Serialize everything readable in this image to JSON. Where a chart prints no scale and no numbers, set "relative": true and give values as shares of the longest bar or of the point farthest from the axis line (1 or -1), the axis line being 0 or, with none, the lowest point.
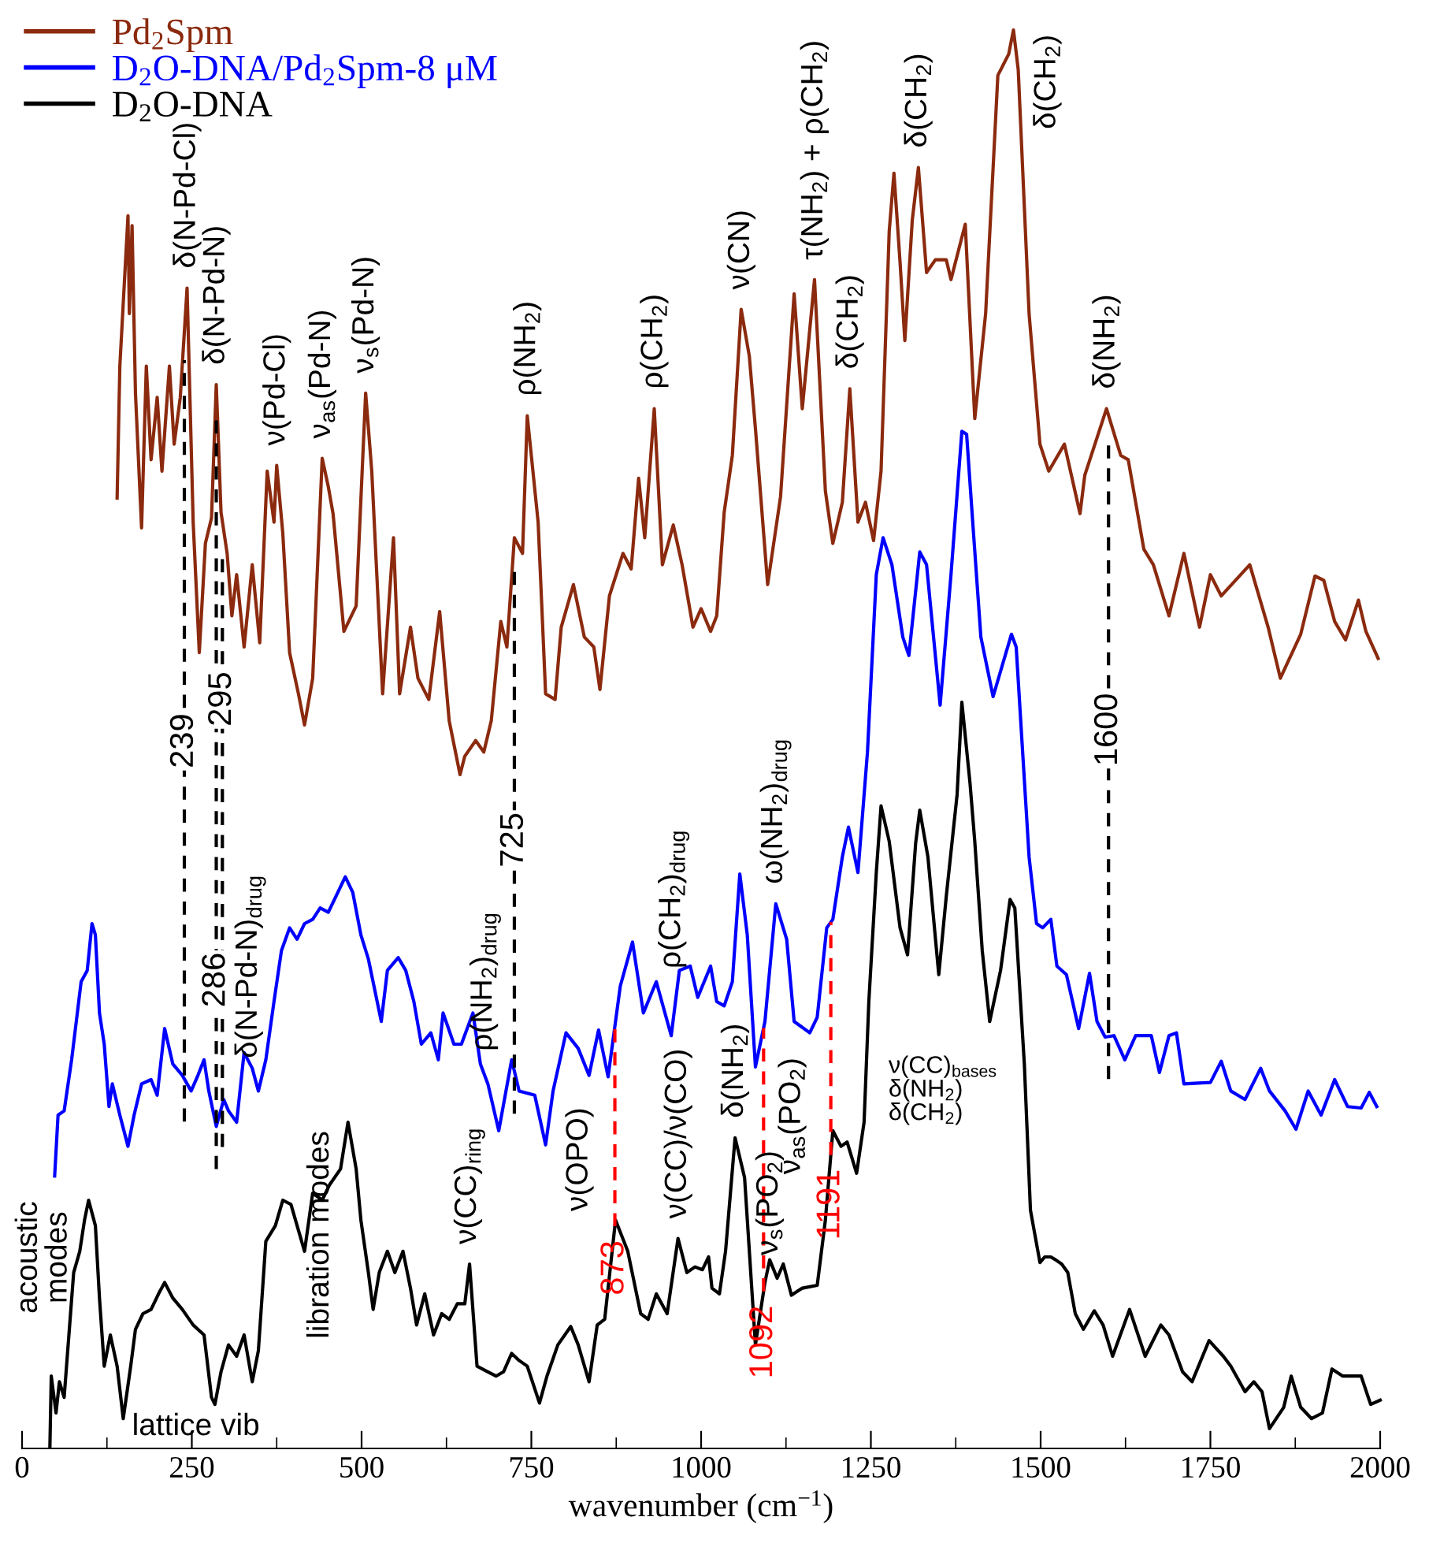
{
  "chart_data": {
    "type": "line",
    "relative": true,
    "xlabel": "wavenumber (cm$^{−1}$)",
    "xlim": [
      0,
      2000
    ],
    "xticks": [
      0,
      250,
      500,
      750,
      1000,
      1250,
      1500,
      1750,
      2000
    ],
    "tick_labels": "x",
    "legend": "top left",
    "series": [
      {
        "name": "Pd$_{2}$Spm",
        "color": "#8b2a0e",
        "x": [
          140,
          144,
          156,
          158,
          162,
          167,
          176,
          183,
          190,
          199,
          206,
          217,
          224,
          233,
          243,
          252,
          261,
          270,
          279,
          286,
          293,
          302,
          309,
          316,
          327,
          339,
          350,
          361,
          371,
          375,
          384,
          394,
          407,
          416,
          428,
          442,
          451,
          458,
          474,
          492,
          506,
          515,
          531,
          547,
          556,
          572,
          583,
          599,
          615,
          629,
          645,
          652,
          668,
          680,
          691,
          705,
          714,
          725,
          737,
          744,
          760,
          771,
          785,
          794,
          812,
          828,
          842,
          851,
          865,
          885,
          897,
          908,
          917,
          931,
          943,
          959,
          972,
          988,
          1000,
          1014,
          1023,
          1034,
          1046,
          1059,
          1071,
          1080,
          1098,
          1117,
          1137,
          1149,
          1167,
          1183,
          1194,
          1208,
          1219,
          1231,
          1242,
          1254,
          1265,
          1277,
          1284,
          1293,
          1300,
          1311,
          1320,
          1332,
          1345,
          1361,
          1368,
          1389,
          1403,
          1419,
          1437,
          1453,
          1460,
          1467,
          1483,
          1499,
          1512,
          1535,
          1558,
          1565,
          1597,
          1618,
          1629,
          1652,
          1666,
          1689,
          1711,
          1734,
          1750,
          1766,
          1808,
          1835,
          1853,
          1883,
          1904,
          1917,
          1933,
          1949,
          1968,
          1979,
          1997
        ],
        "values": [
          0.67,
          0.763,
          0.869,
          0.8,
          0.862,
          0.744,
          0.649,
          0.763,
          0.697,
          0.741,
          0.689,
          0.763,
          0.708,
          0.741,
          0.818,
          0.653,
          0.561,
          0.638,
          0.656,
          0.75,
          0.66,
          0.631,
          0.587,
          0.616,
          0.565,
          0.623,
          0.568,
          0.689,
          0.653,
          0.693,
          0.645,
          0.561,
          0.532,
          0.51,
          0.543,
          0.698,
          0.678,
          0.659,
          0.576,
          0.594,
          0.744,
          0.689,
          0.532,
          0.642,
          0.532,
          0.579,
          0.543,
          0.528,
          0.59,
          0.513,
          0.475,
          0.488,
          0.499,
          0.491,
          0.513,
          0.583,
          0.565,
          0.642,
          0.631,
          0.728,
          0.653,
          0.532,
          0.528,
          0.579,
          0.609,
          0.572,
          0.565,
          0.535,
          0.601,
          0.631,
          0.62,
          0.684,
          0.642,
          0.733,
          0.623,
          0.651,
          0.623,
          0.579,
          0.592,
          0.576,
          0.587,
          0.66,
          0.7,
          0.803,
          0.77,
          0.719,
          0.609,
          0.671,
          0.814,
          0.733,
          0.824,
          0.675,
          0.638,
          0.667,
          0.747,
          0.653,
          0.667,
          0.64,
          0.689,
          0.858,
          0.899,
          0.836,
          0.781,
          0.866,
          0.903,
          0.829,
          0.838,
          0.838,
          0.824,
          0.863,
          0.726,
          0.8,
          0.968,
          0.983,
          1.0,
          0.972,
          0.8,
          0.708,
          0.689,
          0.708,
          0.659,
          0.686,
          0.733,
          0.7,
          0.697,
          0.634,
          0.623,
          0.587,
          0.631,
          0.579,
          0.616,
          0.601,
          0.623,
          0.579,
          0.543,
          0.574,
          0.615,
          0.612,
          0.583,
          0.57,
          0.598,
          0.576,
          0.557
        ]
      },
      {
        "name": "D$_{2}$O-DNA/Pd$_{2}$Spm-8 μM",
        "color": "#0000ff",
        "x": [
          48,
          53,
          62,
          73,
          87,
          96,
          103,
          108,
          114,
          121,
          128,
          133,
          144,
          156,
          165,
          176,
          190,
          199,
          210,
          222,
          236,
          249,
          259,
          268,
          275,
          286,
          297,
          304,
          316,
          327,
          339,
          348,
          359,
          371,
          382,
          394,
          405,
          416,
          428,
          439,
          451,
          462,
          476,
          487,
          499,
          510,
          529,
          538,
          554,
          565,
          577,
          588,
          602,
          613,
          620,
          636,
          647,
          664,
          675,
          686,
          702,
          721,
          732,
          755,
          771,
          782,
          801,
          819,
          835,
          849,
          863,
          881,
          899,
          915,
          934,
          956,
          968,
          984,
          995,
          1014,
          1023,
          1034,
          1046,
          1057,
          1068,
          1080,
          1094,
          1110,
          1126,
          1137,
          1160,
          1171,
          1185,
          1194,
          1208,
          1217,
          1231,
          1245,
          1258,
          1268,
          1281,
          1297,
          1306,
          1322,
          1332,
          1352,
          1368,
          1384,
          1391,
          1400,
          1412,
          1430,
          1457,
          1464,
          1483,
          1494,
          1503,
          1515,
          1524,
          1538,
          1556,
          1572,
          1583,
          1595,
          1608,
          1624,
          1640,
          1663,
          1675,
          1689,
          1700,
          1711,
          1750,
          1766,
          1780,
          1801,
          1824,
          1837,
          1860,
          1876,
          1894,
          1913,
          1933,
          1952,
          1972,
          1984,
          1995
        ],
        "values": [
          0.192,
          0.235,
          0.238,
          0.274,
          0.329,
          0.337,
          0.37,
          0.362,
          0.307,
          0.285,
          0.241,
          0.257,
          0.235,
          0.213,
          0.235,
          0.257,
          0.26,
          0.249,
          0.296,
          0.271,
          0.263,
          0.252,
          0.263,
          0.274,
          0.252,
          0.227,
          0.246,
          0.238,
          0.23,
          0.279,
          0.268,
          0.252,
          0.274,
          0.315,
          0.351,
          0.367,
          0.359,
          0.37,
          0.373,
          0.381,
          0.378,
          0.389,
          0.403,
          0.392,
          0.362,
          0.345,
          0.301,
          0.337,
          0.346,
          0.337,
          0.315,
          0.285,
          0.293,
          0.274,
          0.307,
          0.285,
          0.285,
          0.307,
          0.271,
          0.257,
          0.224,
          0.274,
          0.252,
          0.249,
          0.214,
          0.252,
          0.293,
          0.282,
          0.263,
          0.295,
          0.262,
          0.326,
          0.357,
          0.307,
          0.329,
          0.291,
          0.337,
          0.34,
          0.318,
          0.34,
          0.315,
          0.312,
          0.329,
          0.405,
          0.362,
          0.269,
          0.301,
          0.384,
          0.359,
          0.301,
          0.293,
          0.304,
          0.367,
          0.373,
          0.417,
          0.438,
          0.406,
          0.491,
          0.616,
          0.642,
          0.623,
          0.572,
          0.559,
          0.632,
          0.623,
          0.524,
          0.616,
          0.717,
          0.715,
          0.653,
          0.572,
          0.53,
          0.574,
          0.565,
          0.417,
          0.37,
          0.367,
          0.373,
          0.34,
          0.334,
          0.296,
          0.335,
          0.301,
          0.29,
          0.291,
          0.274,
          0.291,
          0.291,
          0.265,
          0.291,
          0.293,
          0.257,
          0.258,
          0.273,
          0.252,
          0.246,
          0.268,
          0.252,
          0.238,
          0.225,
          0.252,
          0.235,
          0.26,
          0.241,
          0.24,
          0.251,
          0.241
        ]
      },
      {
        "name": "D$_{2}$O-DNA",
        "color": "#000000",
        "x": [
          41,
          43,
          50,
          55,
          62,
          69,
          76,
          85,
          92,
          98,
          108,
          114,
          121,
          130,
          140,
          149,
          160,
          167,
          178,
          190,
          201,
          210,
          222,
          236,
          252,
          268,
          279,
          284,
          293,
          304,
          316,
          327,
          339,
          348,
          359,
          373,
          384,
          396,
          416,
          428,
          442,
          453,
          469,
          480,
          492,
          499,
          510,
          517,
          526,
          538,
          549,
          561,
          572,
          581,
          593,
          606,
          618,
          629,
          641,
          652,
          659,
          670,
          686,
          698,
          709,
          721,
          732,
          744,
          762,
          773,
          789,
          808,
          819,
          835,
          847,
          858,
          874,
          892,
          911,
          922,
          934,
          950,
          966,
          979,
          991,
          1002,
          1011,
          1016,
          1027,
          1036,
          1050,
          1064,
          1080,
          1094,
          1101,
          1112,
          1121,
          1133,
          1149,
          1171,
          1183,
          1194,
          1206,
          1215,
          1229,
          1240,
          1247,
          1258,
          1265,
          1277,
          1293,
          1304,
          1316,
          1322,
          1334,
          1350,
          1361,
          1377,
          1384,
          1396,
          1403,
          1414,
          1425,
          1441,
          1455,
          1462,
          1476,
          1485,
          1499,
          1506,
          1515,
          1522,
          1531,
          1540,
          1551,
          1563,
          1579,
          1592,
          1606,
          1631,
          1654,
          1677,
          1689,
          1709,
          1723,
          1748,
          1769,
          1780,
          1801,
          1814,
          1826,
          1837,
          1858,
          1869,
          1883,
          1899,
          1915,
          1929,
          1945,
          1972,
          1986,
          2000
        ],
        "values": [
          0.001,
          0.051,
          0.025,
          0.047,
          0.036,
          0.08,
          0.124,
          0.139,
          0.161,
          0.175,
          0.157,
          0.106,
          0.058,
          0.08,
          0.058,
          0.021,
          0.058,
          0.084,
          0.095,
          0.098,
          0.109,
          0.117,
          0.106,
          0.098,
          0.087,
          0.08,
          0.036,
          0.031,
          0.054,
          0.073,
          0.065,
          0.08,
          0.047,
          0.069,
          0.146,
          0.157,
          0.175,
          0.172,
          0.139,
          0.18,
          0.175,
          0.186,
          0.197,
          0.23,
          0.197,
          0.161,
          0.124,
          0.098,
          0.124,
          0.139,
          0.124,
          0.139,
          0.113,
          0.087,
          0.109,
          0.08,
          0.095,
          0.091,
          0.102,
          0.102,
          0.13,
          0.058,
          0.054,
          0.051,
          0.054,
          0.067,
          0.062,
          0.058,
          0.032,
          0.051,
          0.073,
          0.086,
          0.073,
          0.047,
          0.087,
          0.091,
          0.161,
          0.139,
          0.095,
          0.091,
          0.109,
          0.095,
          0.148,
          0.124,
          0.128,
          0.126,
          0.135,
          0.113,
          0.109,
          0.139,
          0.219,
          0.191,
          0.073,
          0.117,
          0.133,
          0.12,
          0.13,
          0.108,
          0.113,
          0.115,
          0.161,
          0.224,
          0.213,
          0.216,
          0.194,
          0.23,
          0.315,
          0.406,
          0.453,
          0.428,
          0.367,
          0.348,
          0.427,
          0.45,
          0.417,
          0.334,
          0.389,
          0.461,
          0.526,
          0.469,
          0.428,
          0.351,
          0.301,
          0.337,
          0.387,
          0.381,
          0.271,
          0.168,
          0.131,
          0.135,
          0.135,
          0.133,
          0.13,
          0.124,
          0.095,
          0.084,
          0.097,
          0.087,
          0.065,
          0.098,
          0.065,
          0.087,
          0.08,
          0.054,
          0.047,
          0.076,
          0.065,
          0.058,
          0.04,
          0.047,
          0.04,
          0.014,
          0.029,
          0.051,
          0.029,
          0.021,
          0.025,
          0.056,
          0.051,
          0.051,
          0.031,
          0.034
        ]
      }
    ],
    "ref_lines": [
      {
        "axis": "x",
        "value": 239,
        "label": "239",
        "color": "#000000",
        "line_style": "dashed"
      },
      {
        "axis": "x",
        "value": 286,
        "label": "286",
        "color": "#000000",
        "line_style": "dashed"
      },
      {
        "axis": "x",
        "value": 295,
        "label": "295",
        "color": "#000000",
        "line_style": "dashed"
      },
      {
        "axis": "x",
        "value": 725,
        "label": "725",
        "color": "#000000",
        "line_style": "dashed"
      },
      {
        "axis": "x",
        "value": 1600,
        "label": "1600",
        "color": "#000000",
        "line_style": "dashed"
      },
      {
        "axis": "x",
        "value": 873,
        "label": "873",
        "color": "#ff0000",
        "line_style": "dashed"
      },
      {
        "axis": "x",
        "value": 1092,
        "label": "1092",
        "color": "#ff0000",
        "line_style": "dashed"
      },
      {
        "axis": "x",
        "value": 1191,
        "label": "1191",
        "color": "#ff0000",
        "line_style": "dashed"
      }
    ],
    "annotations": [
      {
        "text": "δ(N-Pd-Cl)",
        "x": 243,
        "y": 0.818
      },
      {
        "text": "δ(N-Pd-N)",
        "x": 286,
        "y": 0.75
      },
      {
        "text": "ν(Pd-Cl)",
        "x": 375,
        "y": 0.693
      },
      {
        "text": "ν$_{as}$(Pd-N)",
        "x": 442,
        "y": 0.698
      },
      {
        "text": "ν$_{s}$(Pd-N)",
        "x": 506,
        "y": 0.744
      },
      {
        "text": "ρ(NH$_{2}$)",
        "x": 744,
        "y": 0.728
      },
      {
        "text": "ρ(CH$_{2}$)",
        "x": 931,
        "y": 0.733
      },
      {
        "text": "ν(CN)",
        "x": 1059,
        "y": 0.803
      },
      {
        "text": "τ(NH$_{2}$) + ρ(CH$_{2}$)",
        "x": 1167,
        "y": 0.824
      },
      {
        "text": "δ(CH$_{2}$)",
        "x": 1219,
        "y": 0.747
      },
      {
        "text": "δ(CH$_{2}$)",
        "x": 1320,
        "y": 0.903
      },
      "δ(CH$_{2}$)",
      {
        "text": "δ(NH$_{2}$)",
        "x": 1597,
        "y": 0.733
      },
      {
        "text": "δ(N-Pd-N)$_{drug}$",
        "x": 304,
        "y": 0.238
      },
      {
        "text": "ρ(NH$_{2}$)$_{drug}$",
        "x": 721,
        "y": 0.274
      },
      {
        "text": "ρ(CH$_{2}$)$_{drug}$",
        "x": 934,
        "y": 0.329
      },
      {
        "text": "ω(NH$_{2}$)$_{drug}$",
        "x": 1110,
        "y": 0.384
      },
      "acoustic\nmodes",
      "lattice vib",
      {
        "text": "libration modes",
        "x": 480,
        "y": 0.23
      },
      {
        "text": "ν(CC)$_{ring}$",
        "x": 659,
        "y": 0.13
      },
      {
        "text": "ν(OPO)",
        "x": 874,
        "y": 0.161
      },
      {
        "text": "ν(CC)/ν(CO)",
        "x": 966,
        "y": 0.148
      },
      {
        "text": "δ(NH$_{2}$)",
        "x": 1050,
        "y": 0.219
      },
      {
        "text": "ν$_{s}$(PO$_{2}$)",
        "x": 1101,
        "y": 0.133
      },
      {
        "text": "ν$_{as}$(PO$_{2}$)",
        "x": 1194,
        "y": 0.224
      },
      "ν(CC)$_{bases}$\nδ(NH$_{2}$)\nδ(CH$_{2}$)"
    ]
  }
}
